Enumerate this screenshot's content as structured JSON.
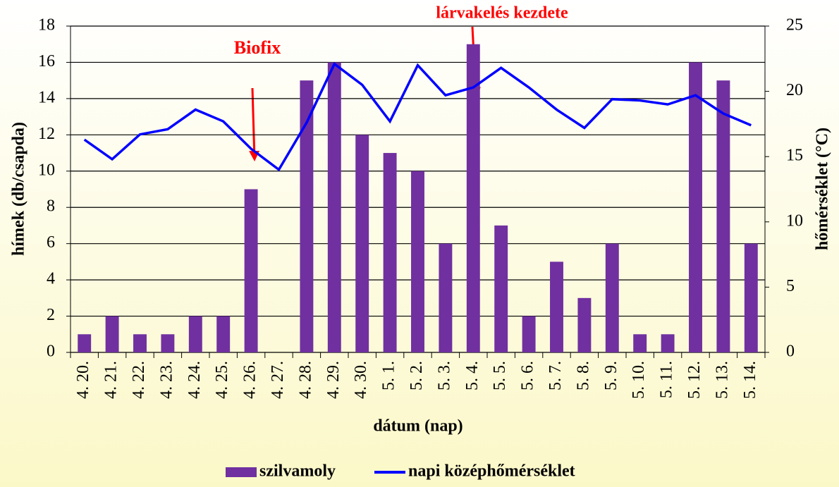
{
  "chart_data": {
    "type": "bar-line",
    "annotations": [
      "Biofix",
      "lárvakelés kezdete"
    ],
    "categories": [
      "4. 20.",
      "4. 21.",
      "4. 22.",
      "4. 23.",
      "4. 24.",
      "4. 25.",
      "4. 26.",
      "4. 27.",
      "4. 28.",
      "4. 29.",
      "4. 30.",
      "5. 1.",
      "5. 2.",
      "5. 3.",
      "5. 4.",
      "5. 5.",
      "5. 6.",
      "5. 7.",
      "5. 8.",
      "5. 9.",
      "5. 10.",
      "5. 11.",
      "5. 12.",
      "5. 13.",
      "5. 14."
    ],
    "series": [
      {
        "name": "szilvamoly",
        "color": "#7030a0",
        "type": "bar",
        "values": [
          1,
          2,
          1,
          1,
          2,
          2,
          9,
          0,
          15,
          16,
          12,
          11,
          10,
          6,
          17,
          7,
          2,
          5,
          3,
          6,
          1,
          1,
          16,
          15,
          6
        ]
      },
      {
        "name": "napi középhőmérséklet",
        "color": "#0000ff",
        "type": "line",
        "axis": "y2",
        "values": [
          16.3,
          14.8,
          16.7,
          17.1,
          18.6,
          17.7,
          15.6,
          14.0,
          17.6,
          22.1,
          20.5,
          17.7,
          22.0,
          19.7,
          20.3,
          21.8,
          20.3,
          18.6,
          17.2,
          19.4,
          19.3,
          19.0,
          19.7,
          18.3,
          17.4
        ]
      }
    ],
    "xlabel": "dátum (nap)",
    "ylabel": "hímek (db/csapda)",
    "y2label": "hőmérséklet (°C)",
    "ylim": [
      0,
      18
    ],
    "yticks": [
      0,
      2,
      4,
      6,
      8,
      10,
      12,
      14,
      16,
      18
    ],
    "y2lim": [
      0,
      25
    ],
    "y2ticks": [
      0,
      5,
      10,
      15,
      20,
      25
    ],
    "grid": true,
    "legend": "bottom"
  }
}
